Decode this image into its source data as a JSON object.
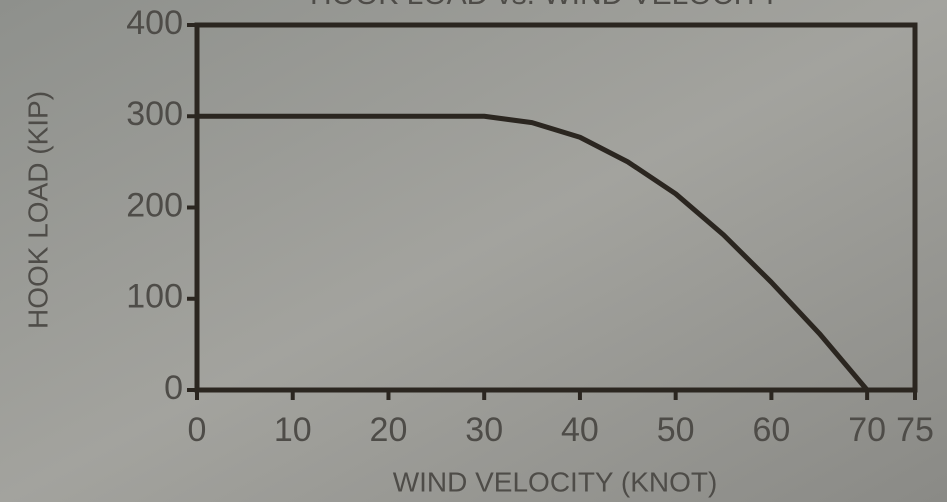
{
  "chart_data": {
    "type": "line",
    "title": "HOOK LOAD vs. WIND VELOCITY",
    "x_label": "WIND VELOCITY (KNOT)",
    "y_label": "HOOK LOAD (KIP)",
    "x": [
      0,
      30,
      35,
      40,
      45,
      50,
      55,
      60,
      65,
      70
    ],
    "series": [
      {
        "color": "#2b2620",
        "values": [
          300,
          300,
          293,
          277,
          250,
          215,
          170,
          118,
          62,
          0
        ]
      }
    ],
    "xlim": [
      0,
      75
    ],
    "xticks": [
      0,
      10,
      20,
      30,
      40,
      50,
      60,
      70,
      75
    ],
    "ylim": [
      0,
      400
    ],
    "yticks": [
      0,
      100,
      200,
      300,
      400
    ]
  }
}
